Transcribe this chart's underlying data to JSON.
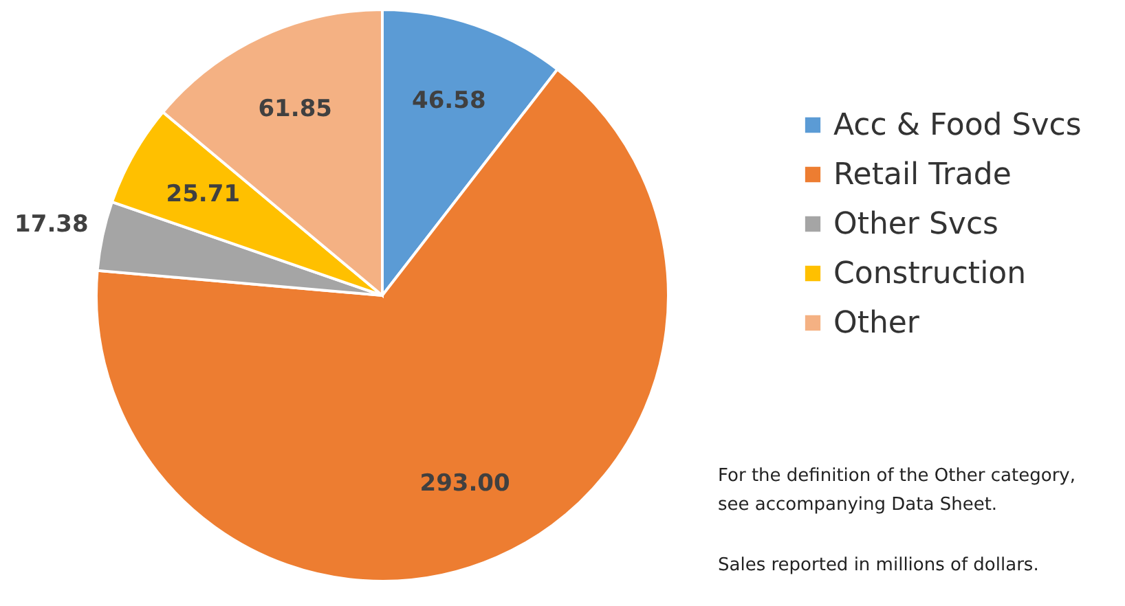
{
  "chart_data": {
    "type": "pie",
    "categories": [
      "Acc & Food Svcs",
      "Retail Trade",
      "Other Svcs",
      "Construction",
      "Other"
    ],
    "values": [
      46.58,
      293.0,
      17.38,
      25.71,
      61.85
    ],
    "colors": [
      "#5b9bd5",
      "#ed7d31",
      "#a5a5a5",
      "#ffc000",
      "#f4b183"
    ],
    "value_labels": [
      "46.58",
      "293.00",
      "17.38",
      "25.71",
      "61.85"
    ],
    "legend": "right",
    "annotations": [
      "For the definition of the Other category,\nsee accompanying Data Sheet.",
      "Sales reported in millions of dollars."
    ]
  }
}
